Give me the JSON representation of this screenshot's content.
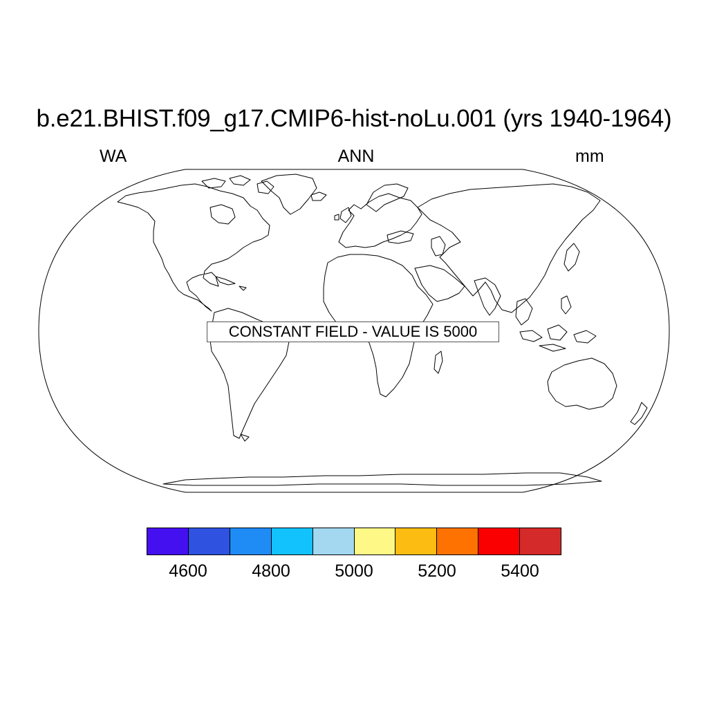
{
  "title": "b.e21.BHIST.f09_g17.CMIP6-hist-noLu.001 (yrs 1940-1964)",
  "left_string": "WA",
  "center_string": "ANN",
  "right_string": "mm",
  "notice": "CONSTANT FIELD - VALUE IS 5000",
  "map": {
    "projection": "robinson",
    "features": [
      "coastlines",
      "map-outline"
    ]
  },
  "colorbar": {
    "colors": [
      "#4410f0",
      "#2f52e0",
      "#1f8bf4",
      "#12c2fc",
      "#a3d8f0",
      "#fef986",
      "#fdbc12",
      "#fd7200",
      "#fb0000",
      "#d42a2a"
    ],
    "tick_labels": [
      "4600",
      "4800",
      "5000",
      "5200",
      "5400"
    ]
  }
}
